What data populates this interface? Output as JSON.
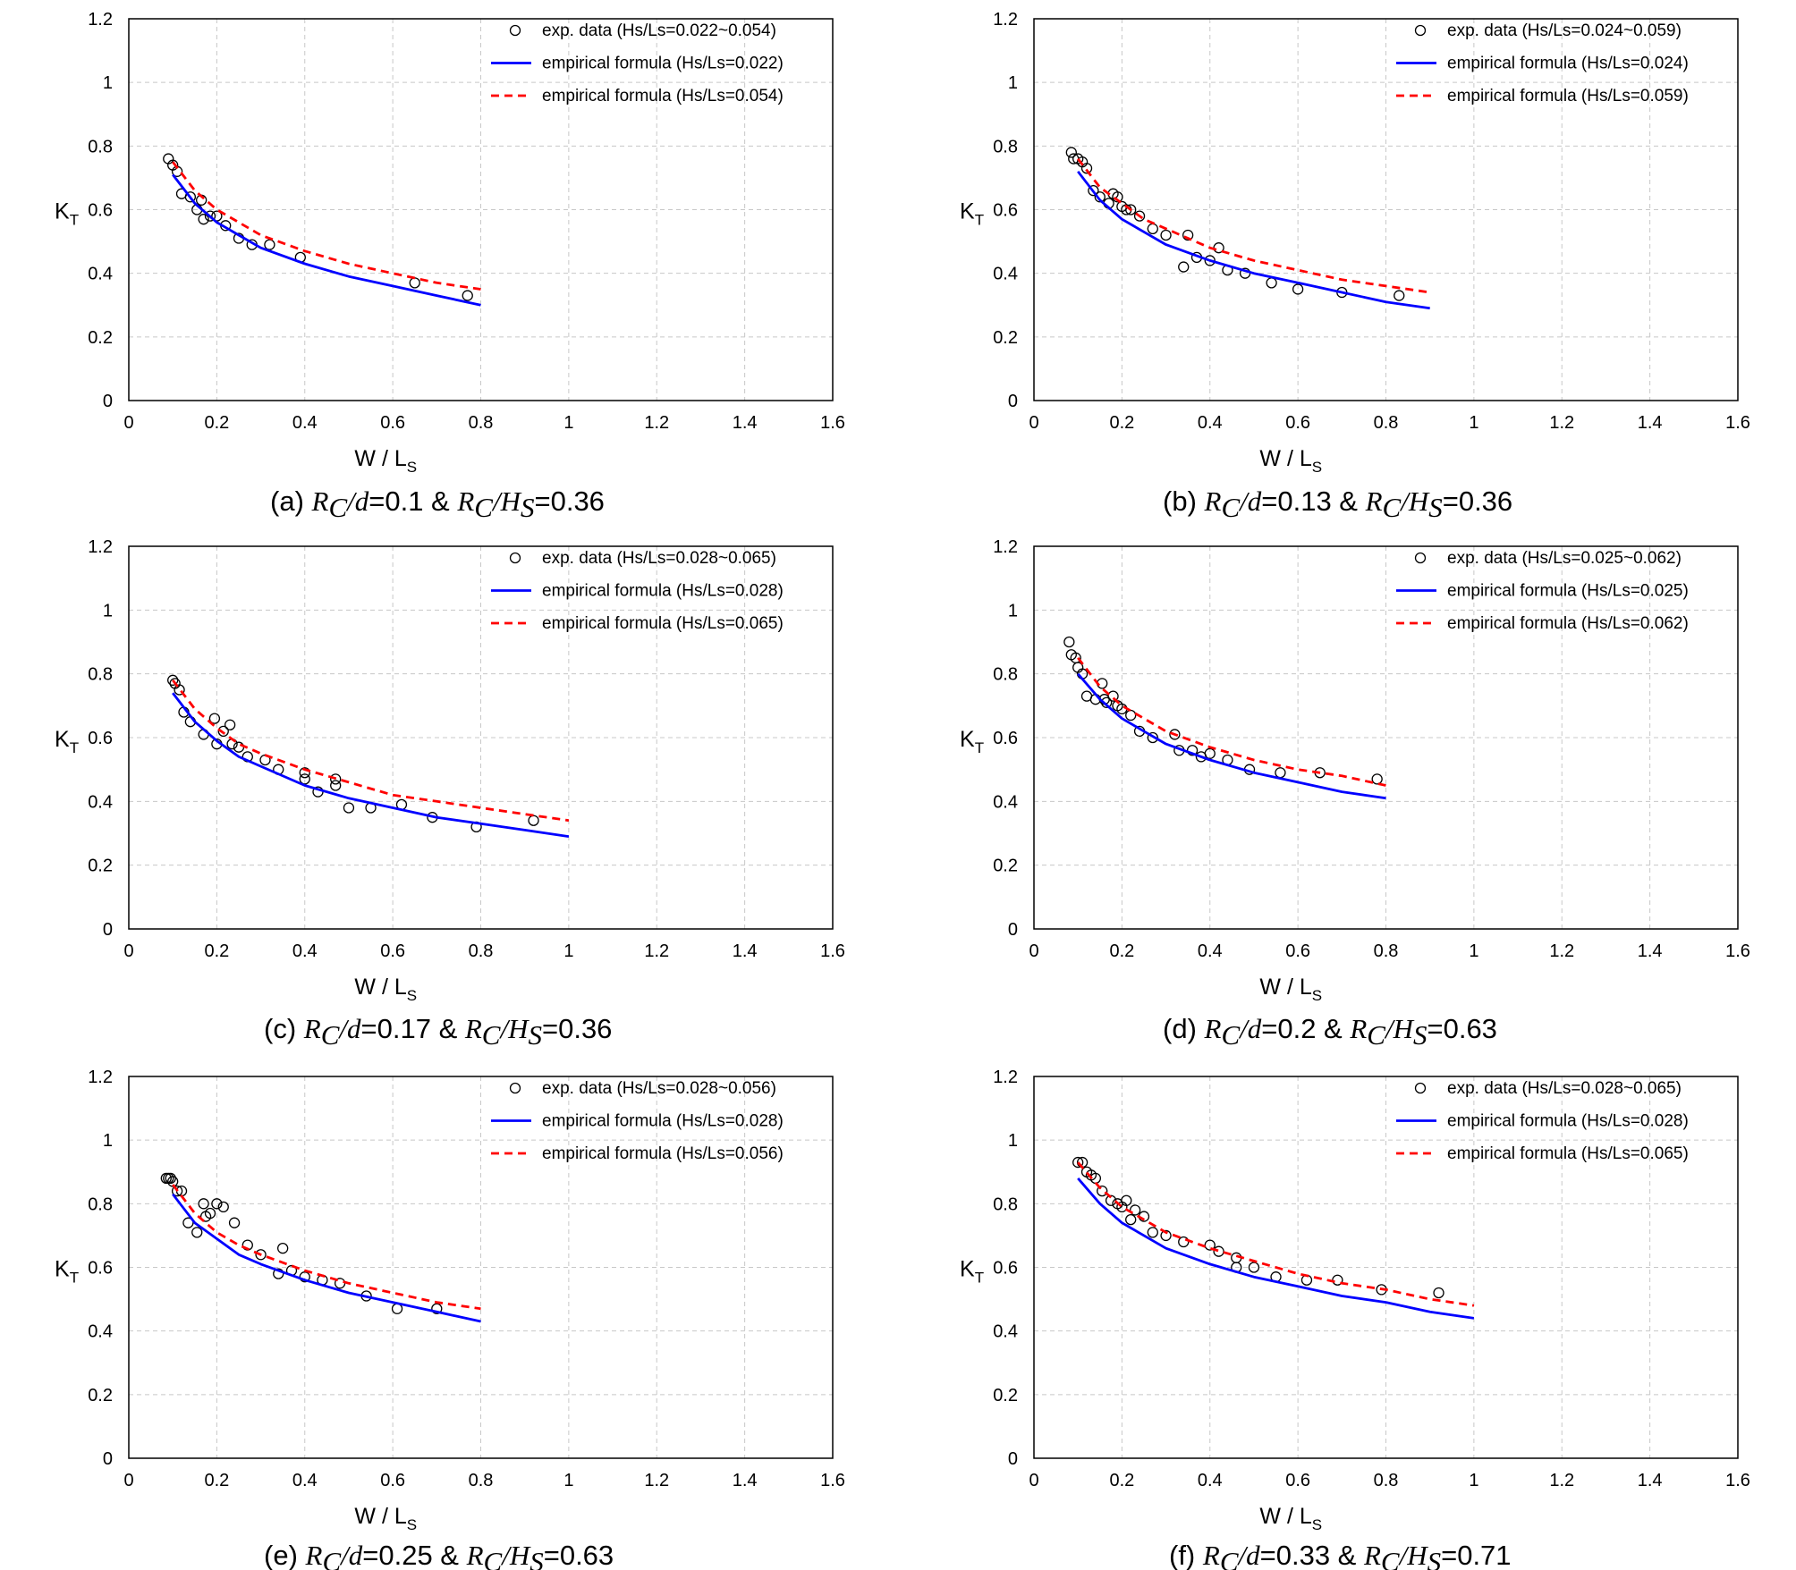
{
  "chart_data": [
    {
      "type": "scatter",
      "panel": "(a)",
      "caption": {
        "label": "(a)",
        "p1": "R",
        "s1": "C",
        "p2": "/d",
        "v1": "=0.1 & ",
        "p3": "R",
        "s3": "C",
        "p4": "/H",
        "s4": "S",
        "v2": "=0.36"
      },
      "xlabel": "W / L",
      "xlabel_sub": "S",
      "ylabel": "K",
      "ylabel_sub": "T",
      "xlim": [
        0,
        1.6
      ],
      "ylim": [
        0,
        1.2
      ],
      "xticks": [
        "0",
        "0.2",
        "0.4",
        "0.6",
        "0.8",
        "1",
        "1.2",
        "1.4",
        "1.6"
      ],
      "yticks": [
        "0",
        "0.2",
        "0.4",
        "0.6",
        "0.8",
        "1",
        "1.2"
      ],
      "grid": true,
      "legend_position": "top-right",
      "series": [
        {
          "name": "exp. data (Hs/Ls=0.022~0.054)",
          "kind": "markers",
          "color": "#000000",
          "x": [
            0.09,
            0.1,
            0.11,
            0.12,
            0.14,
            0.155,
            0.165,
            0.17,
            0.185,
            0.2,
            0.22,
            0.25,
            0.28,
            0.32,
            0.39,
            0.65,
            0.77
          ],
          "y": [
            0.76,
            0.74,
            0.72,
            0.65,
            0.64,
            0.6,
            0.63,
            0.57,
            0.58,
            0.58,
            0.55,
            0.51,
            0.49,
            0.49,
            0.45,
            0.37,
            0.33
          ]
        },
        {
          "name": "empirical formula (Hs/Ls=0.022)",
          "kind": "line",
          "color": "#0000ff",
          "x": [
            0.1,
            0.15,
            0.2,
            0.25,
            0.3,
            0.4,
            0.5,
            0.6,
            0.7,
            0.8
          ],
          "y": [
            0.71,
            0.62,
            0.56,
            0.52,
            0.48,
            0.43,
            0.39,
            0.36,
            0.33,
            0.3
          ]
        },
        {
          "name": "empirical formula (Hs/Ls=0.054)",
          "kind": "dashed",
          "color": "#ff0000",
          "x": [
            0.1,
            0.15,
            0.2,
            0.25,
            0.3,
            0.4,
            0.5,
            0.6,
            0.7,
            0.8
          ],
          "y": [
            0.75,
            0.66,
            0.6,
            0.56,
            0.52,
            0.47,
            0.43,
            0.4,
            0.37,
            0.35
          ]
        }
      ]
    },
    {
      "type": "scatter",
      "panel": "(b)",
      "caption": {
        "label": "(b)",
        "p1": "R",
        "s1": "C",
        "p2": "/d",
        "v1": "=0.13 & ",
        "p3": "R",
        "s3": "C",
        "p4": "/H",
        "s4": "S",
        "v2": "=0.36"
      },
      "xlabel": "W / L",
      "xlabel_sub": "S",
      "ylabel": "K",
      "ylabel_sub": "T",
      "xlim": [
        0,
        1.6
      ],
      "ylim": [
        0,
        1.2
      ],
      "xticks": [
        "0",
        "0.2",
        "0.4",
        "0.6",
        "0.8",
        "1",
        "1.2",
        "1.4",
        "1.6"
      ],
      "yticks": [
        "0",
        "0.2",
        "0.4",
        "0.6",
        "0.8",
        "1",
        "1.2"
      ],
      "grid": true,
      "legend_position": "top-right",
      "series": [
        {
          "name": "exp. data (Hs/Ls=0.024~0.059)",
          "kind": "markers",
          "color": "#000000",
          "x": [
            0.085,
            0.09,
            0.1,
            0.11,
            0.12,
            0.135,
            0.15,
            0.17,
            0.18,
            0.19,
            0.2,
            0.21,
            0.22,
            0.24,
            0.27,
            0.3,
            0.35,
            0.34,
            0.37,
            0.4,
            0.42,
            0.44,
            0.48,
            0.54,
            0.6,
            0.7,
            0.83
          ],
          "y": [
            0.78,
            0.76,
            0.76,
            0.75,
            0.73,
            0.66,
            0.64,
            0.62,
            0.65,
            0.64,
            0.61,
            0.6,
            0.6,
            0.58,
            0.54,
            0.52,
            0.52,
            0.42,
            0.45,
            0.44,
            0.48,
            0.41,
            0.4,
            0.37,
            0.35,
            0.34,
            0.33
          ]
        },
        {
          "name": "empirical formula (Hs/Ls=0.024)",
          "kind": "line",
          "color": "#0000ff",
          "x": [
            0.1,
            0.15,
            0.2,
            0.25,
            0.3,
            0.4,
            0.5,
            0.6,
            0.7,
            0.8,
            0.9
          ],
          "y": [
            0.72,
            0.63,
            0.57,
            0.53,
            0.49,
            0.44,
            0.4,
            0.37,
            0.34,
            0.31,
            0.29
          ]
        },
        {
          "name": "empirical formula (Hs/Ls=0.059)",
          "kind": "dashed",
          "color": "#ff0000",
          "x": [
            0.1,
            0.15,
            0.2,
            0.25,
            0.3,
            0.4,
            0.5,
            0.6,
            0.7,
            0.8,
            0.9
          ],
          "y": [
            0.76,
            0.67,
            0.62,
            0.57,
            0.54,
            0.48,
            0.44,
            0.41,
            0.38,
            0.36,
            0.34
          ]
        }
      ]
    },
    {
      "type": "scatter",
      "panel": "(c)",
      "caption": {
        "label": "(c)",
        "p1": "R",
        "s1": "C",
        "p2": "/d",
        "v1": "=0.17 & ",
        "p3": "R",
        "s3": "C",
        "p4": "/H",
        "s4": "S",
        "v2": "=0.36"
      },
      "xlabel": "W / L",
      "xlabel_sub": "S",
      "ylabel": "K",
      "ylabel_sub": "T",
      "xlim": [
        0,
        1.6
      ],
      "ylim": [
        0,
        1.2
      ],
      "xticks": [
        "0",
        "0.2",
        "0.4",
        "0.6",
        "0.8",
        "1",
        "1.2",
        "1.4",
        "1.6"
      ],
      "yticks": [
        "0",
        "0.2",
        "0.4",
        "0.6",
        "0.8",
        "1",
        "1.2"
      ],
      "grid": true,
      "legend_position": "top-right",
      "series": [
        {
          "name": "exp. data (Hs/Ls=0.028~0.065)",
          "kind": "markers",
          "color": "#000000",
          "x": [
            0.1,
            0.105,
            0.115,
            0.125,
            0.14,
            0.17,
            0.195,
            0.2,
            0.215,
            0.23,
            0.235,
            0.25,
            0.27,
            0.31,
            0.34,
            0.4,
            0.4,
            0.43,
            0.47,
            0.47,
            0.5,
            0.55,
            0.62,
            0.69,
            0.79,
            0.92
          ],
          "y": [
            0.78,
            0.77,
            0.75,
            0.68,
            0.65,
            0.61,
            0.66,
            0.58,
            0.62,
            0.64,
            0.58,
            0.57,
            0.54,
            0.53,
            0.5,
            0.49,
            0.47,
            0.43,
            0.47,
            0.45,
            0.38,
            0.38,
            0.39,
            0.35,
            0.32,
            0.34
          ]
        },
        {
          "name": "empirical formula (Hs/Ls=0.028)",
          "kind": "line",
          "color": "#0000ff",
          "x": [
            0.1,
            0.15,
            0.2,
            0.25,
            0.3,
            0.4,
            0.5,
            0.6,
            0.7,
            0.8,
            0.9,
            1.0
          ],
          "y": [
            0.74,
            0.65,
            0.59,
            0.54,
            0.51,
            0.45,
            0.41,
            0.38,
            0.35,
            0.33,
            0.31,
            0.29
          ]
        },
        {
          "name": "empirical formula (Hs/Ls=0.065)",
          "kind": "dashed",
          "color": "#ff0000",
          "x": [
            0.1,
            0.15,
            0.2,
            0.25,
            0.3,
            0.4,
            0.5,
            0.6,
            0.7,
            0.8,
            0.9,
            1.0
          ],
          "y": [
            0.78,
            0.69,
            0.63,
            0.58,
            0.55,
            0.5,
            0.46,
            0.42,
            0.4,
            0.38,
            0.36,
            0.34
          ]
        }
      ]
    },
    {
      "type": "scatter",
      "panel": "(d)",
      "caption": {
        "label": "(d)",
        "p1": "R",
        "s1": "C",
        "p2": "/d",
        "v1": "=0.2 & ",
        "p3": "R",
        "s3": "C",
        "p4": "/H",
        "s4": "S",
        "v2": "=0.63"
      },
      "xlabel": "W / L",
      "xlabel_sub": "S",
      "ylabel": "K",
      "ylabel_sub": "T",
      "xlim": [
        0,
        1.6
      ],
      "ylim": [
        0,
        1.2
      ],
      "xticks": [
        "0",
        "0.2",
        "0.4",
        "0.6",
        "0.8",
        "1",
        "1.2",
        "1.4",
        "1.6"
      ],
      "yticks": [
        "0",
        "0.2",
        "0.4",
        "0.6",
        "0.8",
        "1",
        "1.2"
      ],
      "grid": true,
      "legend_position": "top-right",
      "series": [
        {
          "name": "exp. data (Hs/Ls=0.025~0.062)",
          "kind": "markers",
          "color": "#000000",
          "x": [
            0.08,
            0.085,
            0.095,
            0.1,
            0.11,
            0.12,
            0.14,
            0.155,
            0.16,
            0.165,
            0.18,
            0.19,
            0.2,
            0.22,
            0.24,
            0.27,
            0.32,
            0.33,
            0.36,
            0.38,
            0.4,
            0.44,
            0.49,
            0.56,
            0.65,
            0.78
          ],
          "y": [
            0.9,
            0.86,
            0.85,
            0.82,
            0.8,
            0.73,
            0.72,
            0.77,
            0.72,
            0.71,
            0.73,
            0.7,
            0.69,
            0.67,
            0.62,
            0.6,
            0.61,
            0.56,
            0.56,
            0.54,
            0.55,
            0.53,
            0.5,
            0.49,
            0.49,
            0.47
          ]
        },
        {
          "name": "empirical formula (Hs/Ls=0.025)",
          "kind": "line",
          "color": "#0000ff",
          "x": [
            0.1,
            0.15,
            0.2,
            0.25,
            0.3,
            0.4,
            0.5,
            0.6,
            0.7,
            0.8
          ],
          "y": [
            0.8,
            0.72,
            0.66,
            0.62,
            0.58,
            0.53,
            0.49,
            0.46,
            0.43,
            0.41
          ]
        },
        {
          "name": "empirical formula (Hs/Ls=0.062)",
          "kind": "dashed",
          "color": "#ff0000",
          "x": [
            0.1,
            0.15,
            0.2,
            0.25,
            0.3,
            0.4,
            0.5,
            0.6,
            0.7,
            0.8
          ],
          "y": [
            0.85,
            0.76,
            0.7,
            0.66,
            0.62,
            0.57,
            0.53,
            0.5,
            0.48,
            0.45
          ]
        }
      ]
    },
    {
      "type": "scatter",
      "panel": "(e)",
      "caption": {
        "label": "(e)",
        "p1": "R",
        "s1": "C",
        "p2": "/d",
        "v1": "=0.25 & ",
        "p3": "R",
        "s3": "C",
        "p4": "/H",
        "s4": "S",
        "v2": "=0.63"
      },
      "xlabel": "W / L",
      "xlabel_sub": "S",
      "ylabel": "K",
      "ylabel_sub": "T",
      "xlim": [
        0,
        1.6
      ],
      "ylim": [
        0,
        1.2
      ],
      "xticks": [
        "0",
        "0.2",
        "0.4",
        "0.6",
        "0.8",
        "1",
        "1.2",
        "1.4",
        "1.6"
      ],
      "yticks": [
        "0",
        "0.2",
        "0.4",
        "0.6",
        "0.8",
        "1",
        "1.2"
      ],
      "grid": true,
      "legend_position": "top-right",
      "series": [
        {
          "name": "exp. data (Hs/Ls=0.028~0.056)",
          "kind": "markers",
          "color": "#000000",
          "x": [
            0.085,
            0.09,
            0.095,
            0.1,
            0.11,
            0.12,
            0.135,
            0.155,
            0.17,
            0.175,
            0.185,
            0.2,
            0.215,
            0.24,
            0.27,
            0.3,
            0.34,
            0.35,
            0.37,
            0.4,
            0.44,
            0.48,
            0.54,
            0.61,
            0.7
          ],
          "y": [
            0.88,
            0.88,
            0.88,
            0.87,
            0.84,
            0.84,
            0.74,
            0.71,
            0.8,
            0.76,
            0.77,
            0.8,
            0.79,
            0.74,
            0.67,
            0.64,
            0.58,
            0.66,
            0.59,
            0.57,
            0.56,
            0.55,
            0.51,
            0.47,
            0.47
          ]
        },
        {
          "name": "empirical formula (Hs/Ls=0.028)",
          "kind": "line",
          "color": "#0000ff",
          "x": [
            0.1,
            0.15,
            0.2,
            0.25,
            0.3,
            0.4,
            0.5,
            0.6,
            0.7,
            0.8
          ],
          "y": [
            0.83,
            0.74,
            0.69,
            0.64,
            0.61,
            0.56,
            0.52,
            0.49,
            0.46,
            0.43
          ]
        },
        {
          "name": "empirical formula (Hs/Ls=0.056)",
          "kind": "dashed",
          "color": "#ff0000",
          "x": [
            0.1,
            0.15,
            0.2,
            0.25,
            0.3,
            0.4,
            0.5,
            0.6,
            0.7,
            0.8
          ],
          "y": [
            0.86,
            0.77,
            0.71,
            0.67,
            0.64,
            0.59,
            0.55,
            0.52,
            0.49,
            0.47
          ]
        }
      ]
    },
    {
      "type": "scatter",
      "panel": "(f)",
      "caption": {
        "label": "(f)",
        "p1": "R",
        "s1": "C",
        "p2": "/d",
        "v1": "=0.33 & ",
        "p3": "R",
        "s3": "C",
        "p4": "/H",
        "s4": "S",
        "v2": "=0.71"
      },
      "xlabel": "W / L",
      "xlabel_sub": "S",
      "ylabel": "K",
      "ylabel_sub": "T",
      "xlim": [
        0,
        1.6
      ],
      "ylim": [
        0,
        1.2
      ],
      "xticks": [
        "0",
        "0.2",
        "0.4",
        "0.6",
        "0.8",
        "1",
        "1.2",
        "1.4",
        "1.6"
      ],
      "yticks": [
        "0",
        "0.2",
        "0.4",
        "0.6",
        "0.8",
        "1",
        "1.2"
      ],
      "grid": true,
      "legend_position": "top-right",
      "series": [
        {
          "name": "exp. data (Hs/Ls=0.028~0.065)",
          "kind": "markers",
          "color": "#000000",
          "x": [
            0.1,
            0.11,
            0.12,
            0.13,
            0.14,
            0.155,
            0.175,
            0.19,
            0.2,
            0.21,
            0.22,
            0.23,
            0.25,
            0.27,
            0.3,
            0.34,
            0.4,
            0.42,
            0.46,
            0.46,
            0.5,
            0.55,
            0.62,
            0.69,
            0.79,
            0.92
          ],
          "y": [
            0.93,
            0.93,
            0.9,
            0.89,
            0.88,
            0.84,
            0.81,
            0.8,
            0.79,
            0.81,
            0.75,
            0.78,
            0.76,
            0.71,
            0.7,
            0.68,
            0.67,
            0.65,
            0.63,
            0.6,
            0.6,
            0.57,
            0.56,
            0.56,
            0.53,
            0.52
          ]
        },
        {
          "name": "empirical formula (Hs/Ls=0.028)",
          "kind": "line",
          "color": "#0000ff",
          "x": [
            0.1,
            0.15,
            0.2,
            0.25,
            0.3,
            0.4,
            0.5,
            0.6,
            0.7,
            0.8,
            0.9,
            1.0
          ],
          "y": [
            0.88,
            0.8,
            0.74,
            0.7,
            0.66,
            0.61,
            0.57,
            0.54,
            0.51,
            0.49,
            0.46,
            0.44
          ]
        },
        {
          "name": "empirical formula (Hs/Ls=0.065)",
          "kind": "dashed",
          "color": "#ff0000",
          "x": [
            0.1,
            0.15,
            0.2,
            0.25,
            0.3,
            0.4,
            0.5,
            0.6,
            0.7,
            0.8,
            0.9,
            1.0
          ],
          "y": [
            0.93,
            0.85,
            0.79,
            0.75,
            0.71,
            0.66,
            0.62,
            0.58,
            0.55,
            0.53,
            0.5,
            0.48
          ]
        }
      ]
    }
  ]
}
